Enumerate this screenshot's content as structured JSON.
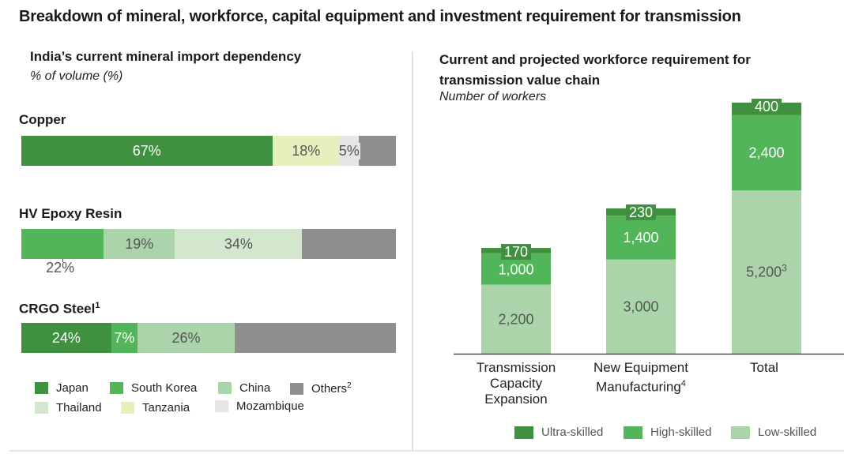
{
  "title": "Breakdown of mineral, workforce, capital equipment and investment requirement for transmission",
  "colors": {
    "japan": "#40913f",
    "south_korea": "#52b55a",
    "china": "#abd4ab",
    "others": "#8f8f8f",
    "thailand": "#d3e7ce",
    "tanzania": "#e6f0bd",
    "mozambique": "#e6e6e6",
    "ultra_skilled": "#40913f",
    "high_skilled": "#52b55a",
    "low_skilled": "#abd4ab",
    "axis": "#333333"
  },
  "chart_data": [
    {
      "type": "bar",
      "orientation": "horizontal-stacked-100",
      "title": "India’s current mineral import dependency",
      "subtitle": "% of volume (%)",
      "legend": [
        {
          "key": "japan",
          "label": "Japan",
          "sup": ""
        },
        {
          "key": "south_korea",
          "label": "South Korea",
          "sup": ""
        },
        {
          "key": "china",
          "label": "China",
          "sup": ""
        },
        {
          "key": "others",
          "label": "Others",
          "sup": "2"
        },
        {
          "key": "thailand",
          "label": "Thailand",
          "sup": ""
        },
        {
          "key": "tanzania",
          "label": "Tanzania",
          "sup": ""
        },
        {
          "key": "mozambique",
          "label": "Mozambique",
          "sup": ""
        }
      ],
      "legend_placement": "bottom",
      "categories": [
        {
          "name": "Copper",
          "sup": "",
          "segments": [
            {
              "key": "japan",
              "value": 67,
              "label": "67%",
              "label_color": "#ffffff"
            },
            {
              "key": "tanzania",
              "value": 18,
              "label": "18%",
              "label_color": "#555555"
            },
            {
              "key": "mozambique",
              "value": 5,
              "label": "5%",
              "label_color": "#555555"
            },
            {
              "key": "others",
              "value": 10,
              "label": "",
              "label_color": "#ffffff"
            }
          ]
        },
        {
          "name": "HV Epoxy Resin",
          "sup": "",
          "segments": [
            {
              "key": "south_korea",
              "value": 22,
              "label": "22%",
              "label_color": "#555555",
              "label_position": "below"
            },
            {
              "key": "china",
              "value": 19,
              "label": "19%",
              "label_color": "#555555"
            },
            {
              "key": "thailand",
              "value": 34,
              "label": "34%",
              "label_color": "#555555"
            },
            {
              "key": "others",
              "value": 25,
              "label": "",
              "label_color": "#ffffff"
            }
          ]
        },
        {
          "name": "CRGO Steel",
          "sup": "1",
          "segments": [
            {
              "key": "japan",
              "value": 24,
              "label": "24%",
              "label_color": "#ffffff"
            },
            {
              "key": "south_korea",
              "value": 7,
              "label": "7%",
              "label_color": "#ffffff"
            },
            {
              "key": "china",
              "value": 26,
              "label": "26%",
              "label_color": "#555555"
            },
            {
              "key": "others",
              "value": 43,
              "label": "",
              "label_color": "#ffffff"
            }
          ]
        }
      ]
    },
    {
      "type": "bar",
      "orientation": "vertical-stacked",
      "title": "Current and projected workforce requirement for transmission value chain",
      "subtitle": "Number of workers",
      "ylim": [
        0,
        8000
      ],
      "grid": false,
      "legend_placement": "bottom-right",
      "categories": [
        {
          "label": [
            "Transmission",
            "Capacity",
            "Expansion"
          ],
          "sup": ""
        },
        {
          "label": [
            "New Equipment",
            "Manufacturing"
          ],
          "sup": "4"
        },
        {
          "label": [
            "Total"
          ],
          "sup": ""
        }
      ],
      "series": [
        {
          "key": "low_skilled",
          "name": "Low-skilled",
          "values": [
            2200,
            3000,
            5200
          ],
          "labels": [
            "2,200",
            "3,000",
            "5,200"
          ],
          "label_sups": [
            "",
            "",
            "3"
          ],
          "label_color": "#555555"
        },
        {
          "key": "high_skilled",
          "name": "High-skilled",
          "values": [
            1000,
            1400,
            2400
          ],
          "labels": [
            "1,000",
            "1,400",
            "2,400"
          ],
          "label_sups": [
            "",
            "",
            ""
          ],
          "label_color": "#ffffff"
        },
        {
          "key": "ultra_skilled",
          "name": "Ultra-skilled",
          "values": [
            170,
            230,
            400
          ],
          "labels": [
            "170",
            "230",
            "400"
          ],
          "label_sups": [
            "",
            "",
            ""
          ],
          "label_color": "#ffffff"
        }
      ],
      "legend": [
        {
          "key": "ultra_skilled",
          "label": "Ultra-skilled"
        },
        {
          "key": "high_skilled",
          "label": "High-skilled"
        },
        {
          "key": "low_skilled",
          "label": "Low-skilled"
        }
      ]
    }
  ]
}
